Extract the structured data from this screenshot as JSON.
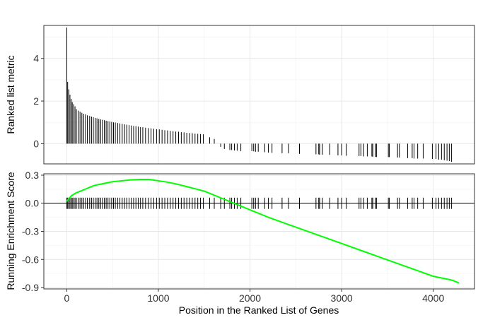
{
  "chart_data": [
    {
      "type": "bar",
      "panel": "ranked-list",
      "ylabel": "Ranked list metric",
      "xlim": [
        -250,
        4450
      ],
      "ylim": [
        -0.95,
        5.55
      ],
      "yticks": [
        0,
        2,
        4
      ],
      "ytick_labels": [
        "0",
        "2",
        "4"
      ],
      "grid": true,
      "color": "#000000",
      "values": {
        "x": [
          0,
          10,
          22,
          35,
          48,
          60,
          75,
          90,
          105,
          125,
          145,
          165,
          185,
          205,
          225,
          250,
          270,
          290,
          310,
          330,
          350,
          370,
          390,
          410,
          430,
          450,
          470,
          490,
          510,
          530,
          555,
          580,
          605,
          630,
          655,
          680,
          705,
          730,
          755,
          780,
          805,
          830,
          860,
          890,
          920,
          950,
          980,
          1010,
          1040,
          1070,
          1100,
          1130,
          1160,
          1190,
          1220,
          1250,
          1280,
          1310,
          1340,
          1370,
          1400,
          1430,
          1460,
          1490,
          1560,
          1610,
          1680,
          1720,
          1780,
          1800,
          1830,
          1860,
          1900,
          2020,
          2040,
          2060,
          2090,
          2160,
          2200,
          2240,
          2350,
          2420,
          2540,
          2720,
          2750,
          2760,
          2790,
          2870,
          2960,
          3000,
          3050,
          3190,
          3210,
          3240,
          3280,
          3330,
          3340,
          3370,
          3380,
          3510,
          3520,
          3610,
          3630,
          3720,
          3770,
          3790,
          3830,
          3890,
          3990,
          4030,
          4060,
          4090,
          4120,
          4150,
          4175,
          4200
        ],
        "y": [
          5.45,
          2.9,
          2.55,
          2.3,
          2.1,
          1.95,
          1.85,
          1.75,
          1.62,
          1.55,
          1.5,
          1.45,
          1.4,
          1.38,
          1.33,
          1.3,
          1.27,
          1.24,
          1.21,
          1.19,
          1.16,
          1.14,
          1.12,
          1.1,
          1.08,
          1.06,
          1.04,
          1.02,
          1.0,
          0.99,
          0.97,
          0.95,
          0.93,
          0.91,
          0.89,
          0.87,
          0.85,
          0.83,
          0.82,
          0.8,
          0.78,
          0.77,
          0.75,
          0.73,
          0.72,
          0.7,
          0.68,
          0.67,
          0.65,
          0.63,
          0.62,
          0.6,
          0.59,
          0.57,
          0.56,
          0.54,
          0.53,
          0.51,
          0.5,
          0.49,
          0.47,
          0.46,
          0.45,
          0.44,
          0.3,
          0.22,
          -0.15,
          -0.25,
          -0.3,
          -0.3,
          -0.32,
          -0.33,
          -0.35,
          -0.35,
          -0.36,
          -0.38,
          -0.38,
          -0.4,
          -0.42,
          -0.43,
          -0.45,
          -0.45,
          -0.48,
          -0.5,
          -0.5,
          -0.52,
          -0.52,
          -0.53,
          -0.55,
          -0.55,
          -0.57,
          -0.58,
          -0.58,
          -0.6,
          -0.6,
          -0.6,
          -0.62,
          -0.62,
          -0.63,
          -0.63,
          -0.63,
          -0.65,
          -0.65,
          -0.68,
          -0.68,
          -0.7,
          -0.7,
          -0.7,
          -0.72,
          -0.72,
          -0.75,
          -0.75,
          -0.78,
          -0.8,
          -0.82,
          -0.85
        ]
      }
    },
    {
      "type": "line",
      "panel": "running-enrichment-score",
      "xlabel": "Position in the Ranked List of Genes",
      "ylabel": "Running Enrichment Score",
      "xlim": [
        -250,
        4450
      ],
      "ylim": [
        -0.915,
        0.315
      ],
      "xticks": [
        0,
        1000,
        2000,
        3000,
        4000
      ],
      "xtick_labels": [
        "0",
        "1000",
        "2000",
        "3000",
        "4000"
      ],
      "yticks": [
        -0.9,
        -0.6,
        -0.3,
        0.0,
        0.3
      ],
      "ytick_labels": [
        "-0.9",
        "-0.6",
        "-0.3",
        "0.0",
        "0.3"
      ],
      "grid": true,
      "zero_line": true,
      "line_color": "#00ff00",
      "rug_color": "#000000",
      "rug_ymin": -0.06,
      "rug_ymax": 0.06,
      "series": [
        {
          "x": [
            0,
            25,
            50,
            100,
            150,
            200,
            250,
            300,
            400,
            500,
            600,
            700,
            800,
            900,
            1000,
            1100,
            1200,
            1300,
            1400,
            1500,
            1600,
            1700,
            1800,
            1900,
            2000,
            2100,
            2200,
            2400,
            2600,
            2800,
            3000,
            3200,
            3400,
            3600,
            3800,
            4000,
            4100,
            4200,
            4280
          ],
          "y": [
            0.02,
            0.05,
            0.08,
            0.11,
            0.13,
            0.15,
            0.17,
            0.19,
            0.21,
            0.23,
            0.24,
            0.25,
            0.255,
            0.255,
            0.24,
            0.225,
            0.205,
            0.18,
            0.155,
            0.13,
            0.09,
            0.05,
            0.01,
            -0.03,
            -0.07,
            -0.11,
            -0.15,
            -0.22,
            -0.29,
            -0.36,
            -0.43,
            -0.5,
            -0.57,
            -0.64,
            -0.71,
            -0.78,
            -0.8,
            -0.82,
            -0.85
          ]
        }
      ]
    }
  ]
}
